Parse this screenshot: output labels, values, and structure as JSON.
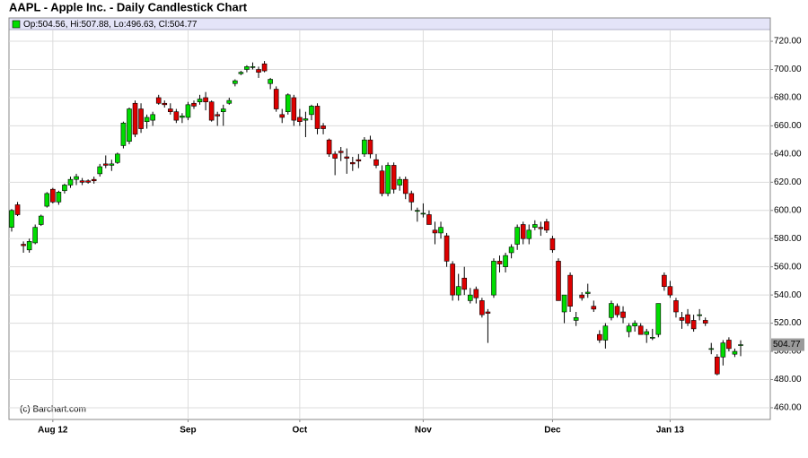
{
  "chart_data": {
    "type": "candlestick",
    "title": "AAPL - Apple Inc. - Daily Candlestick Chart",
    "legend": "Op:504.56, Hi:507.88, Lo:496.63, Cl:504.77",
    "source": "(c) Barchart.com",
    "last_price": 504.77,
    "up_color": "#00dd00",
    "down_color": "#dd0000",
    "grid": true,
    "categories": [
      null,
      null,
      null,
      null,
      null,
      null,
      null,
      "Aug 12",
      null,
      null,
      null,
      null,
      null,
      null,
      null,
      null,
      null,
      null,
      null,
      null,
      null,
      null,
      null,
      null,
      null,
      null,
      null,
      null,
      null,
      null,
      "Sep",
      null,
      null,
      null,
      null,
      null,
      null,
      null,
      null,
      null,
      null,
      null,
      null,
      null,
      null,
      null,
      null,
      null,
      null,
      "Oct",
      null,
      null,
      null,
      null,
      null,
      null,
      null,
      null,
      null,
      null,
      null,
      null,
      null,
      null,
      null,
      null,
      null,
      null,
      null,
      null,
      "Nov",
      null,
      null,
      null,
      null,
      null,
      null,
      null,
      null,
      null,
      null,
      null,
      null,
      null,
      null,
      null,
      null,
      null,
      null,
      null,
      null,
      null,
      "Dec",
      null,
      null,
      null,
      null,
      null,
      null,
      null,
      null,
      null,
      null,
      null,
      null,
      null,
      null,
      null,
      null,
      null,
      null,
      null,
      "Jan 13",
      null,
      null,
      null,
      null,
      null,
      null,
      null,
      null,
      null,
      null,
      null,
      null
    ],
    "open": [
      588,
      604,
      576,
      572,
      577,
      590,
      603,
      615,
      606,
      614,
      618,
      622,
      621,
      621,
      622,
      626,
      633,
      632,
      634,
      646,
      649,
      676,
      672,
      663,
      664,
      680,
      676,
      672,
      670,
      666,
      666,
      676,
      677,
      680,
      677,
      668,
      670,
      676,
      690,
      697,
      700,
      702,
      700,
      704,
      690,
      686,
      668,
      670,
      680,
      666,
      664,
      668,
      674,
      660,
      650,
      640,
      642,
      638,
      634,
      636,
      640,
      650,
      636,
      628,
      612,
      632,
      618,
      622,
      612,
      600,
      598,
      597,
      586,
      584,
      582,
      562,
      540,
      552,
      536,
      544,
      536,
      528,
      540,
      564,
      560,
      570,
      576,
      590,
      580,
      588,
      588,
      592,
      580,
      564,
      528,
      554,
      522,
      540,
      541,
      532,
      512,
      508,
      524,
      532,
      528,
      514,
      518,
      518,
      512,
      510,
      512,
      554,
      546,
      536,
      524,
      526,
      522,
      526,
      522,
      502,
      496,
      496,
      508,
      498,
      504.56
    ],
    "high": [
      601,
      606,
      578,
      580,
      590,
      597,
      613,
      616,
      614,
      619,
      624,
      626,
      623,
      622,
      624,
      633,
      639,
      636,
      641,
      663,
      673,
      678,
      676,
      668,
      670,
      682,
      678,
      676,
      672,
      669,
      677,
      678,
      682,
      684,
      678,
      670,
      675,
      680,
      693,
      699,
      703,
      705,
      702,
      706,
      694,
      688,
      672,
      683,
      682,
      672,
      670,
      675,
      676,
      662,
      651,
      642,
      645,
      644,
      638,
      640,
      652,
      653,
      640,
      632,
      634,
      634,
      624,
      624,
      614,
      602,
      605,
      600,
      592,
      592,
      584,
      564,
      555,
      560,
      545,
      546,
      538,
      530,
      566,
      568,
      570,
      576,
      590,
      592,
      590,
      593,
      592,
      594,
      582,
      566,
      540,
      556,
      528,
      542,
      548,
      536,
      515,
      520,
      536,
      534,
      532,
      520,
      522,
      520,
      516,
      516,
      534,
      556,
      550,
      538,
      528,
      530,
      526,
      530,
      524,
      506,
      498,
      508,
      510,
      502,
      507.88
    ],
    "low": [
      585,
      596,
      570,
      570,
      576,
      589,
      602,
      605,
      604,
      612,
      616,
      618,
      618,
      619,
      619,
      624,
      630,
      628,
      633,
      644,
      647,
      652,
      655,
      658,
      660,
      675,
      673,
      668,
      662,
      662,
      664,
      672,
      675,
      671,
      663,
      660,
      660,
      675,
      688,
      696,
      698,
      700,
      694,
      698,
      686,
      670,
      662,
      668,
      660,
      660,
      652,
      664,
      654,
      654,
      638,
      625,
      635,
      626,
      628,
      630,
      638,
      637,
      630,
      610,
      610,
      612,
      614,
      608,
      600,
      592,
      595,
      590,
      576,
      580,
      560,
      536,
      536,
      540,
      534,
      534,
      524,
      506,
      538,
      556,
      556,
      566,
      572,
      576,
      576,
      586,
      582,
      584,
      570,
      536,
      520,
      528,
      518,
      536,
      538,
      528,
      506,
      502,
      522,
      524,
      520,
      510,
      514,
      512,
      506,
      508,
      510,
      543,
      538,
      524,
      516,
      518,
      514,
      522,
      518,
      498,
      483,
      490,
      500,
      496,
      496.63
    ],
    "close": [
      600,
      597,
      575,
      578,
      588,
      596,
      612,
      606,
      613,
      618,
      622,
      624,
      620,
      620,
      621,
      631,
      632,
      633,
      640,
      662,
      672,
      654,
      658,
      666,
      668,
      676,
      675,
      670,
      664,
      667,
      675,
      674,
      679,
      677,
      664,
      667,
      672,
      678,
      692,
      698,
      702,
      702,
      698,
      699,
      693,
      672,
      666,
      682,
      664,
      663,
      665,
      674,
      658,
      658,
      640,
      637,
      641,
      637,
      633,
      635,
      650,
      640,
      632,
      612,
      632,
      615,
      622,
      612,
      606,
      600,
      598,
      590,
      584,
      588,
      564,
      540,
      546,
      544,
      540,
      538,
      526,
      527,
      564,
      562,
      568,
      574,
      588,
      580,
      586,
      590,
      587,
      586,
      572,
      536,
      540,
      532,
      524,
      538,
      542,
      530,
      508,
      518,
      534,
      526,
      524,
      518,
      520,
      512,
      514,
      510,
      534,
      546,
      540,
      528,
      522,
      520,
      516,
      526,
      520,
      502,
      484,
      506,
      502,
      500,
      504.77
    ],
    "ylim": [
      451.7,
      728.3
    ],
    "yticks": [
      {
        "value": 460,
        "label": "460.00"
      },
      {
        "value": 480,
        "label": "480.00"
      },
      {
        "value": 500,
        "label": "500.00"
      },
      {
        "value": 520,
        "label": "520.00"
      },
      {
        "value": 540,
        "label": "540.00"
      },
      {
        "value": 560,
        "label": "560.00"
      },
      {
        "value": 580,
        "label": "580.00"
      },
      {
        "value": 600,
        "label": "600.00"
      },
      {
        "value": 620,
        "label": "620.00"
      },
      {
        "value": 640,
        "label": "640.00"
      },
      {
        "value": 660,
        "label": "660.00"
      },
      {
        "value": 680,
        "label": "680.00"
      },
      {
        "value": 700,
        "label": "700.00"
      },
      {
        "value": 720,
        "label": "720.00"
      }
    ]
  }
}
